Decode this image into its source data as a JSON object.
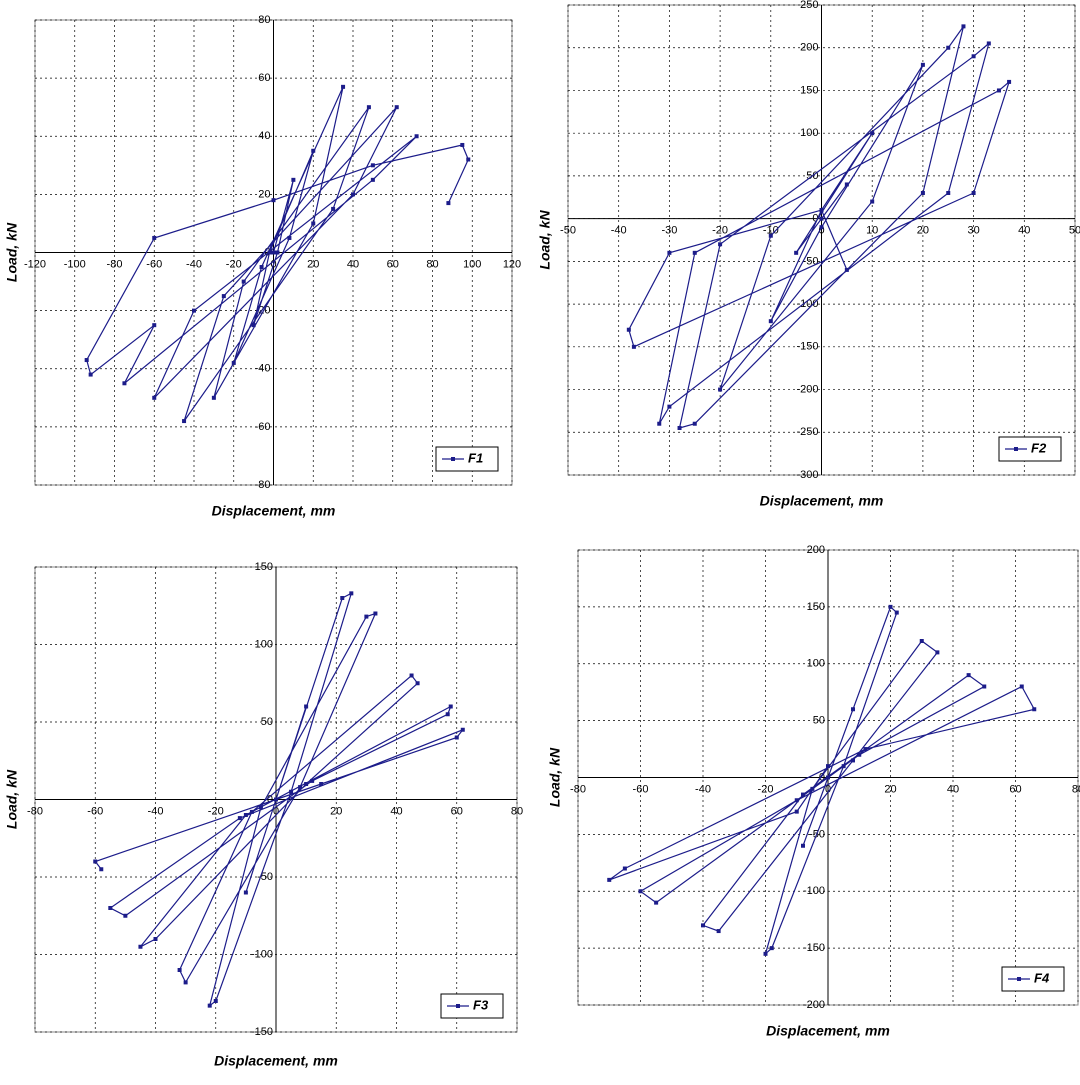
{
  "chart_data": [
    {
      "type": "line",
      "x_label": "Displacement, mm",
      "y_label": "Load, kN",
      "grid": true,
      "legend": "bottom-right",
      "xlim": [
        -120,
        120
      ],
      "xticks": [
        -120,
        -100,
        -80,
        -60,
        -40,
        -20,
        0,
        20,
        40,
        60,
        80,
        100,
        120
      ],
      "ylim": [
        -80,
        80
      ],
      "yticks": [
        -80,
        -60,
        -40,
        -20,
        0,
        20,
        40,
        60,
        80
      ],
      "x": [
        0,
        10,
        2,
        -10,
        -2,
        20,
        8,
        -20,
        -6,
        35,
        20,
        -30,
        -15,
        48,
        30,
        -45,
        -25,
        62,
        40,
        -60,
        -40,
        72,
        50,
        -75,
        -60,
        -92,
        -94,
        -60,
        0,
        50,
        95,
        98,
        88
      ],
      "series": [
        {
          "name": "F1",
          "color": "#1c1c8a",
          "values": [
            0,
            25,
            0,
            -25,
            0,
            35,
            5,
            -38,
            -5,
            57,
            10,
            -50,
            -10,
            50,
            15,
            -58,
            -15,
            50,
            20,
            -50,
            -20,
            40,
            25,
            -45,
            -25,
            -42,
            -37,
            5,
            18,
            30,
            37,
            32,
            17
          ]
        }
      ]
    },
    {
      "type": "line",
      "x_label": "Displacement, mm",
      "y_label": "Load, kN",
      "grid": true,
      "legend": "bottom-right",
      "xlim": [
        -50,
        50
      ],
      "xticks": [
        -50,
        -40,
        -30,
        -20,
        -10,
        0,
        10,
        20,
        30,
        40,
        50
      ],
      "ylim": [
        -300,
        250
      ],
      "yticks": [
        -300,
        -250,
        -200,
        -150,
        -100,
        -50,
        0,
        50,
        100,
        150,
        200,
        250
      ],
      "x": [
        0,
        5,
        -5,
        10,
        0,
        -10,
        0,
        20,
        10,
        -20,
        -10,
        25,
        28,
        20,
        -25,
        -28,
        -20,
        30,
        33,
        25,
        -30,
        -32,
        -25,
        35,
        37,
        30,
        -37,
        -38,
        -30,
        0,
        5
      ],
      "series": [
        {
          "name": "F2",
          "color": "#1c1c8a",
          "values": [
            0,
            40,
            -40,
            100,
            10,
            -120,
            -10,
            180,
            20,
            -200,
            -20,
            200,
            225,
            30,
            -240,
            -245,
            -30,
            190,
            205,
            30,
            -220,
            -240,
            -40,
            150,
            160,
            30,
            -150,
            -130,
            -40,
            10,
            -60
          ]
        }
      ]
    },
    {
      "type": "line",
      "x_label": "Displacement, mm",
      "y_label": "Load, kN",
      "grid": true,
      "legend": "bottom-right",
      "xlim": [
        -80,
        80
      ],
      "xticks": [
        -80,
        -60,
        -40,
        -20,
        0,
        20,
        40,
        60,
        80
      ],
      "ylim": [
        -150,
        150
      ],
      "yticks": [
        -150,
        -100,
        -50,
        0,
        50,
        100,
        150
      ],
      "x": [
        0,
        10,
        0,
        -10,
        0,
        22,
        25,
        5,
        -20,
        -22,
        -5,
        30,
        33,
        8,
        -30,
        -32,
        -8,
        45,
        47,
        10,
        -40,
        -45,
        -10,
        58,
        57,
        12,
        -50,
        -55,
        -12,
        62,
        60,
        15,
        -60,
        -58
      ],
      "series": [
        {
          "name": "F3",
          "color": "#1c1c8a",
          "values": [
            0,
            60,
            0,
            -60,
            0,
            130,
            133,
            5,
            -130,
            -133,
            -5,
            118,
            120,
            8,
            -118,
            -110,
            -8,
            80,
            75,
            10,
            -90,
            -95,
            -10,
            60,
            55,
            12,
            -75,
            -70,
            -12,
            45,
            40,
            10,
            -40,
            -45
          ]
        }
      ]
    },
    {
      "type": "line",
      "x_label": "Displacement, mm",
      "y_label": "Load, kN",
      "grid": true,
      "legend": "bottom-right",
      "xlim": [
        -80,
        80
      ],
      "xticks": [
        -80,
        -60,
        -40,
        -20,
        0,
        20,
        40,
        60,
        80
      ],
      "ylim": [
        -200,
        200
      ],
      "yticks": [
        -200,
        -150,
        -100,
        -50,
        0,
        50,
        100,
        150,
        200
      ],
      "x": [
        0,
        8,
        0,
        -8,
        0,
        20,
        22,
        5,
        -18,
        -20,
        -5,
        30,
        35,
        8,
        -35,
        -40,
        -8,
        45,
        50,
        10,
        -55,
        -60,
        -10,
        62,
        66,
        12,
        -65,
        -70,
        -10,
        0
      ],
      "series": [
        {
          "name": "F4",
          "color": "#1c1c8a",
          "values": [
            0,
            60,
            0,
            -60,
            0,
            150,
            145,
            10,
            -150,
            -155,
            -10,
            120,
            110,
            15,
            -135,
            -130,
            -15,
            90,
            80,
            20,
            -110,
            -100,
            -20,
            80,
            60,
            25,
            -80,
            -90,
            -30,
            10
          ]
        }
      ]
    }
  ]
}
